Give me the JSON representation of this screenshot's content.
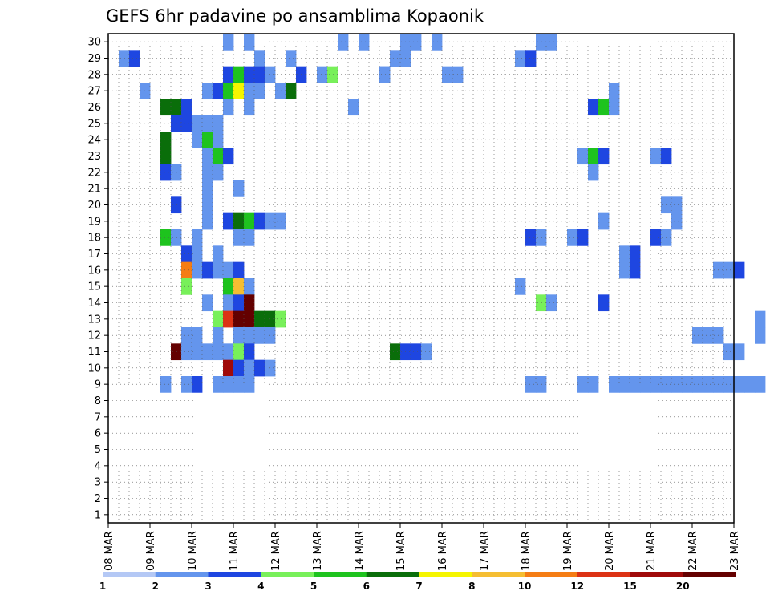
{
  "chart_data": {
    "type": "heatmap",
    "title": "GEFS 6hr padavine po ansamblima Kopaonik",
    "x_tick_labels": [
      "08 MAR",
      "09 MAR",
      "10 MAR",
      "11 MAR",
      "12 MAR",
      "13 MAR",
      "14 MAR",
      "15 MAR",
      "16 MAR",
      "17 MAR",
      "18 MAR",
      "19 MAR",
      "20 MAR",
      "21 MAR",
      "22 MAR",
      "23 MAR"
    ],
    "y_tick_labels": [
      "1",
      "2",
      "3",
      "4",
      "5",
      "6",
      "7",
      "8",
      "9",
      "10",
      "11",
      "12",
      "13",
      "14",
      "15",
      "16",
      "17",
      "18",
      "19",
      "20",
      "21",
      "22",
      "23",
      "24",
      "25",
      "26",
      "27",
      "28",
      "29",
      "30"
    ],
    "x_range_steps": [
      0,
      60
    ],
    "y_range_members": [
      0,
      30
    ],
    "grid": true,
    "colorbar": {
      "labels": [
        "1",
        "2",
        "3",
        "4",
        "5",
        "6",
        "7",
        "8",
        "10",
        "12",
        "15",
        "20"
      ],
      "colors": [
        "#b4c8f5",
        "#6495ed",
        "#1e46e1",
        "#78f05a",
        "#1ec31e",
        "#0a6e0a",
        "#f5f500",
        "#f5be32",
        "#f57d14",
        "#dc3214",
        "#a00a0a",
        "#640000"
      ]
    },
    "cells": [
      [
        31,
        7,
        2
      ],
      [
        33,
        7,
        2
      ],
      [
        42,
        6,
        2
      ],
      [
        44,
        8,
        2
      ],
      [
        48,
        11,
        2
      ],
      [
        49,
        11,
        2
      ],
      [
        51,
        1,
        2
      ],
      [
        61,
        7,
        2
      ],
      [
        62,
        1,
        2
      ],
      [
        21,
        11,
        2
      ],
      [
        22,
        11,
        3
      ],
      [
        34,
        1,
        2
      ],
      [
        37,
        1,
        2
      ],
      [
        47,
        1,
        2
      ],
      [
        48,
        1,
        2
      ],
      [
        59,
        11,
        2
      ],
      [
        60,
        11,
        3
      ],
      [
        31,
        9,
        3
      ],
      [
        32,
        9,
        5
      ],
      [
        33,
        9,
        3
      ],
      [
        34,
        9,
        3
      ],
      [
        35,
        1,
        2
      ],
      [
        38,
        9,
        3
      ],
      [
        40,
        11,
        2
      ],
      [
        41,
        9,
        4
      ],
      [
        46,
        1,
        2
      ],
      [
        46,
        2,
        2
      ],
      [
        52,
        1,
        2
      ],
      [
        53,
        1,
        2
      ],
      [
        23,
        1,
        2
      ],
      [
        29,
        1,
        2
      ],
      [
        30,
        9,
        3
      ],
      [
        31,
        9,
        5
      ],
      [
        32,
        9,
        7
      ],
      [
        33,
        1,
        2
      ],
      [
        34,
        1,
        2
      ],
      [
        36,
        1,
        2
      ],
      [
        37,
        10,
        6
      ],
      [
        68,
        1,
        2
      ],
      [
        25,
        8,
        6
      ],
      [
        26,
        5,
        6
      ],
      [
        27,
        5,
        3
      ],
      [
        31,
        1,
        2
      ],
      [
        33,
        1,
        2
      ],
      [
        43,
        1,
        2
      ],
      [
        66,
        10,
        3
      ],
      [
        67,
        6,
        5
      ],
      [
        68,
        1,
        2
      ],
      [
        26,
        8,
        3
      ],
      [
        27,
        9,
        3
      ],
      [
        28,
        9,
        2
      ],
      [
        29,
        9,
        2
      ],
      [
        30,
        9,
        2
      ],
      [
        25,
        7,
        6
      ],
      [
        28,
        1,
        2
      ],
      [
        29,
        1,
        5
      ],
      [
        30,
        2,
        2
      ],
      [
        25,
        7,
        6
      ],
      [
        29,
        2,
        2
      ],
      [
        30,
        1,
        5
      ],
      [
        31,
        1,
        3
      ],
      [
        65,
        10,
        2
      ],
      [
        66,
        8,
        5
      ],
      [
        67,
        7,
        3
      ],
      [
        72,
        7,
        2
      ],
      [
        73,
        7,
        3
      ],
      [
        25,
        9,
        3
      ],
      [
        26,
        1,
        2
      ],
      [
        29,
        1,
        2
      ],
      [
        30,
        1,
        2
      ],
      [
        66,
        1,
        2
      ],
      [
        29,
        1,
        2
      ],
      [
        32,
        1,
        2
      ],
      [
        26,
        1,
        3
      ],
      [
        29,
        1,
        2
      ],
      [
        73,
        1,
        2
      ],
      [
        74,
        1,
        2
      ],
      [
        29,
        1,
        2
      ],
      [
        31,
        8,
        3
      ],
      [
        32,
        8,
        6
      ],
      [
        33,
        8,
        5
      ],
      [
        34,
        8,
        3
      ],
      [
        35,
        8,
        2
      ],
      [
        36,
        8,
        2
      ],
      [
        67,
        1,
        2
      ],
      [
        74,
        1,
        2
      ],
      [
        25,
        7,
        5
      ],
      [
        26,
        2,
        2
      ],
      [
        28,
        1,
        2
      ],
      [
        32,
        1,
        2
      ],
      [
        33,
        1,
        2
      ],
      [
        60,
        9,
        3
      ],
      [
        61,
        9,
        2
      ],
      [
        64,
        1,
        2
      ],
      [
        65,
        8,
        3
      ],
      [
        72,
        9,
        3
      ],
      [
        73,
        9,
        2
      ],
      [
        27,
        2,
        3
      ],
      [
        28,
        1,
        2
      ],
      [
        30,
        1,
        2
      ],
      [
        69,
        1,
        2
      ],
      [
        70,
        1,
        3
      ],
      [
        27,
        7,
        9
      ],
      [
        28,
        9,
        2
      ],
      [
        29,
        9,
        3
      ],
      [
        30,
        9,
        2
      ],
      [
        31,
        9,
        2
      ],
      [
        32,
        9,
        3
      ],
      [
        69,
        1,
        2
      ],
      [
        70,
        1,
        3
      ],
      [
        78,
        1,
        2
      ],
      [
        79,
        11,
        2
      ],
      [
        80,
        11,
        3
      ],
      [
        27,
        5,
        4
      ],
      [
        31,
        5,
        5
      ],
      [
        32,
        5,
        8
      ],
      [
        33,
        5,
        2
      ],
      [
        59,
        1,
        2
      ],
      [
        29,
        1,
        2
      ],
      [
        31,
        1,
        2
      ],
      [
        32,
        1,
        3
      ],
      [
        33,
        6,
        13
      ],
      [
        61,
        11,
        4
      ],
      [
        62,
        1,
        2
      ],
      [
        67,
        5,
        3
      ],
      [
        30,
        11,
        4
      ],
      [
        31,
        1,
        10
      ],
      [
        32,
        1,
        16
      ],
      [
        33,
        1,
        16
      ],
      [
        34,
        1,
        6
      ],
      [
        35,
        1,
        6
      ],
      [
        36,
        1,
        4
      ],
      [
        82,
        1,
        2
      ],
      [
        27,
        1,
        2
      ],
      [
        28,
        1,
        2
      ],
      [
        30,
        1,
        2
      ],
      [
        32,
        1,
        2
      ],
      [
        33,
        1,
        2
      ],
      [
        34,
        1,
        2
      ],
      [
        35,
        1,
        2
      ],
      [
        76,
        1,
        2
      ],
      [
        77,
        1,
        2
      ],
      [
        78,
        1,
        2
      ],
      [
        82,
        1,
        2
      ],
      [
        26,
        9,
        13
      ],
      [
        27,
        1,
        2
      ],
      [
        28,
        1,
        2
      ],
      [
        29,
        1,
        2
      ],
      [
        30,
        1,
        2
      ],
      [
        31,
        1,
        2
      ],
      [
        32,
        1,
        4
      ],
      [
        33,
        1,
        3
      ],
      [
        47,
        9,
        6
      ],
      [
        48,
        1,
        3
      ],
      [
        49,
        1,
        3
      ],
      [
        50,
        1,
        2
      ],
      [
        79,
        1,
        2
      ],
      [
        80,
        1,
        2
      ],
      [
        31,
        5,
        11
      ],
      [
        32,
        5,
        3
      ],
      [
        33,
        5,
        2
      ],
      [
        34,
        5,
        3
      ],
      [
        35,
        5,
        2
      ],
      [
        25,
        1,
        2
      ],
      [
        27,
        1,
        2
      ],
      [
        28,
        1,
        3
      ],
      [
        30,
        1,
        2
      ],
      [
        31,
        1,
        2
      ],
      [
        32,
        1,
        2
      ],
      [
        33,
        1,
        2
      ],
      [
        60,
        1,
        2
      ],
      [
        61,
        1,
        2
      ],
      [
        65,
        1,
        2
      ],
      [
        66,
        1,
        2
      ],
      [
        68,
        1,
        2
      ],
      [
        69,
        1,
        2
      ],
      [
        70,
        1,
        2
      ],
      [
        71,
        1,
        2
      ],
      [
        72,
        1,
        2
      ],
      [
        73,
        1,
        2
      ],
      [
        74,
        1,
        2
      ],
      [
        75,
        1,
        2
      ],
      [
        76,
        1,
        2
      ],
      [
        77,
        1,
        2
      ],
      [
        78,
        1,
        2
      ],
      [
        79,
        1,
        2
      ],
      [
        80,
        1,
        2
      ],
      [
        81,
        1,
        2
      ],
      [
        82,
        1,
        2
      ]
    ]
  }
}
